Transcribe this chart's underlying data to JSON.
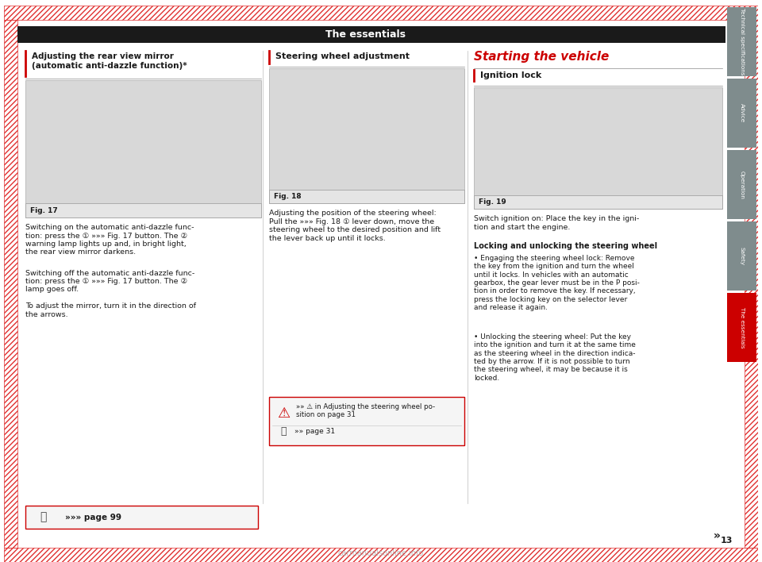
{
  "page_width": 9.6,
  "page_height": 7.08,
  "dpi": 100,
  "bg_color": "#ffffff",
  "hatch_color": "#e03030",
  "header_bg": "#1a1a1a",
  "header_text": "The essentials",
  "header_text_color": "#ffffff",
  "header_font_size": 9,
  "gray_tab_color": "#7f8c8d",
  "red_tab_color": "#cc0000",
  "tab_text_color": "#ffffff",
  "tab_labels": [
    "Technical specifications",
    "Advice",
    "Operation",
    "Safety",
    "The essentials"
  ],
  "tab_active_index": 4,
  "section1_title": "Adjusting the rear view mirror\n(automatic anti-dazzle function)*",
  "section2_title": "Steering wheel adjustment",
  "section3_title": "Starting the vehicle",
  "section3_subtitle": "Ignition lock",
  "fig17_label": "Fig. 17",
  "fig18_label": "Fig. 18",
  "fig19_label": "Fig. 19",
  "section1_text1": "Switching on the automatic anti-dazzle func-\ntion: press the ① »»» Fig. 17 button. The ②\nwarning lamp lights up and, in bright light,\nthe rear view mirror darkens.",
  "section1_text2": "Switching off the automatic anti-dazzle func-\ntion: press the ① »»» Fig. 17 button. The ②\nlamp goes off.",
  "section1_text3": "To adjust the mirror, turn it in the direction of\nthe arrows.",
  "section1_ref": "»»» page 99",
  "section2_text": "Adjusting the position of the steering wheel:\nPull the »»» Fig. 18 ① lever down, move the\nsteering wheel to the desired position and lift\nthe lever back up until it locks.",
  "section2_warning": "»» ⚠ in Adjusting the steering wheel po-\nsition on page 31",
  "section2_ref": "»» page 31",
  "section3_text1": "Switch ignition on: Place the key in the igni-\ntion and start the engine.",
  "section3_bold": "Locking and unlocking the steering wheel",
  "section3_text2": "• Engaging the steering wheel lock: Remove\nthe key from the ignition and turn the wheel\nuntil it locks. In vehicles with an automatic\ngearbox, the gear lever must be in the P posi-\ntion in order to remove the key. If necessary,\npress the locking key on the selector lever\nand release it again.",
  "section3_text3": "• Unlocking the steering wheel: Put the key\ninto the ignition and turn it at the same time\nas the steering wheel in the direction indica-\nted by the arrow. If it is not possible to turn\nthe steering wheel, it may be because it is\nlocked.",
  "page_number": "13",
  "double_arrow": "»",
  "accent_color": "#cc0000",
  "line_color": "#cc0000",
  "border_color": "#cc0000",
  "watermark": "carmanualsonline.info"
}
